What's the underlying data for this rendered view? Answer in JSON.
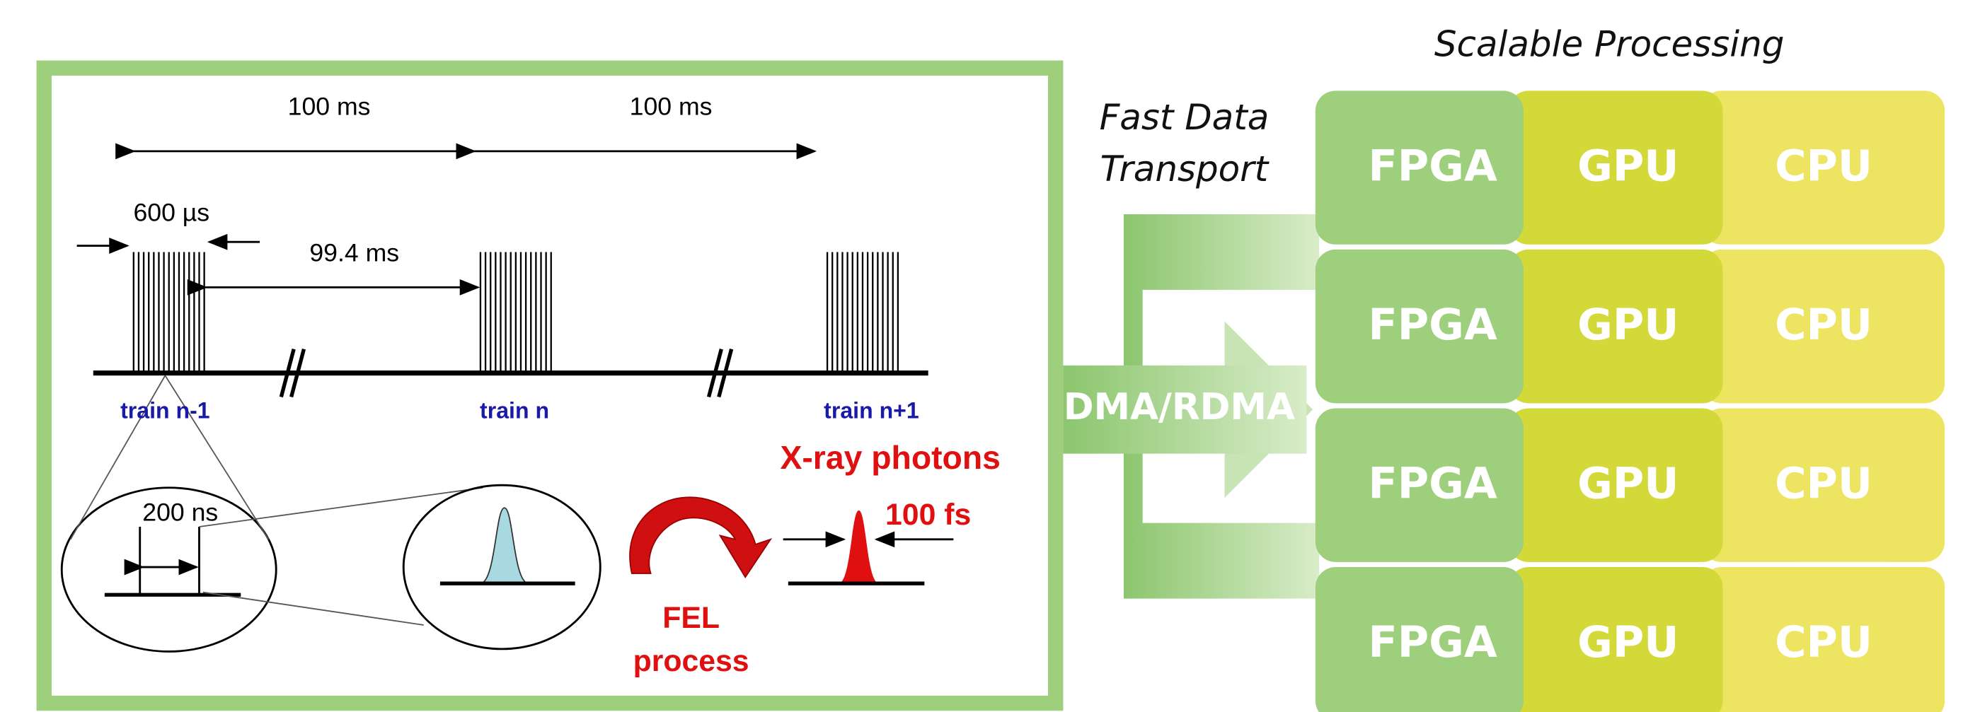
{
  "timing": {
    "period_labels": [
      "100 ms",
      "100 ms"
    ],
    "train_width": "600 µs",
    "gap": "99.4 ms",
    "trains": [
      "train n-1",
      "train n",
      "train n+1"
    ],
    "pulse_spacing": "200 ns",
    "photons": "X-ray photons",
    "pulse_duration": "100 fs",
    "fel": [
      "FEL",
      "process"
    ]
  },
  "transport": {
    "title": [
      "Fast Data",
      "Transport"
    ],
    "label": "DMA/RDMA"
  },
  "processing": {
    "title": "Scalable Processing",
    "rows": [
      [
        "FPGA",
        "GPU",
        "CPU"
      ],
      [
        "FPGA",
        "GPU",
        "CPU"
      ],
      [
        "FPGA",
        "GPU",
        "CPU"
      ],
      [
        "FPGA",
        "GPU",
        "CPU"
      ]
    ]
  }
}
